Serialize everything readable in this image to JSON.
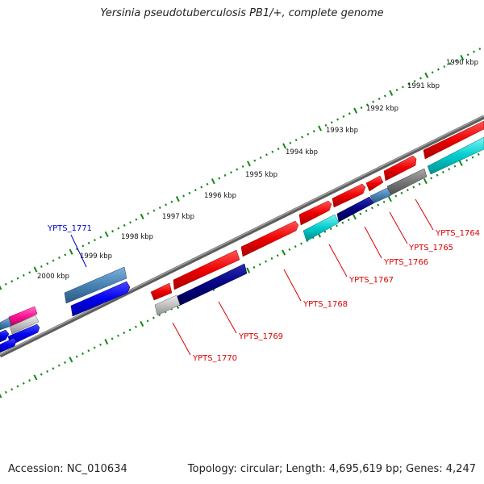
{
  "header": {
    "title": "Yersinia pseudotuberculosis PB1/+, complete genome"
  },
  "footer": {
    "accession": "Accession: NC_010634",
    "summary": "Topology: circular; Length: 4,695,619 bp; Genes: 4,247"
  },
  "scale": {
    "tick_labels": [
      "1990 kbp",
      "1991 kbp",
      "1992 kbp",
      "1993 kbp",
      "1994 kbp",
      "1995 kbp",
      "1996 kbp",
      "1997 kbp",
      "1998 kbp",
      "1999 kbp",
      "2000 kbp"
    ]
  },
  "genes": [
    {
      "id": "YPTS_1764",
      "color": "#dd0000"
    },
    {
      "id": "YPTS_1765",
      "color": "#dd0000"
    },
    {
      "id": "YPTS_1766",
      "color": "#dd0000"
    },
    {
      "id": "YPTS_1767",
      "color": "#dd0000"
    },
    {
      "id": "YPTS_1768",
      "color": "#dd0000"
    },
    {
      "id": "YPTS_1769",
      "color": "#dd0000"
    },
    {
      "id": "YPTS_1770",
      "color": "#dd0000"
    },
    {
      "id": "YPTS_1771",
      "color": "#0000cc"
    }
  ],
  "colors": {
    "backbone": "#777777",
    "ticks": "#118811",
    "forward_cds": "#ee0000",
    "reverse_navy": "#000080",
    "cyan": "#00cccc",
    "steelblue": "#4682b4",
    "blue": "#0000ee",
    "gray": "#777777",
    "lightgray": "#c0c0c0",
    "pink": "#ff1493"
  }
}
